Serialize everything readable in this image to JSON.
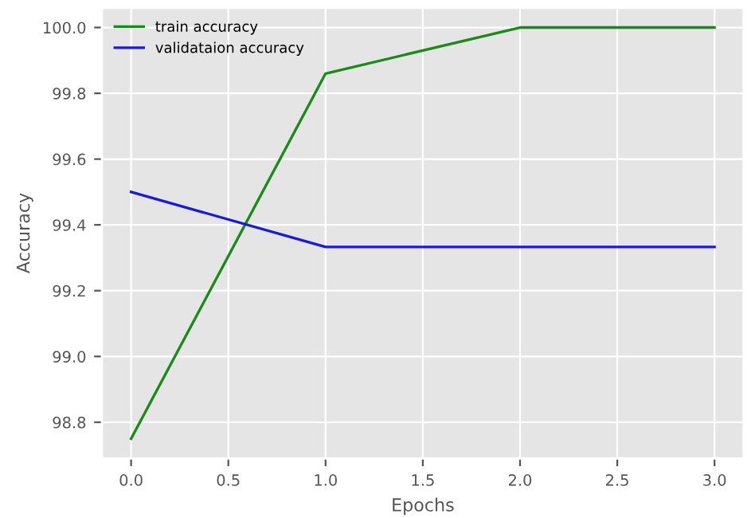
{
  "chart_data": {
    "type": "line",
    "xlabel": "Epochs",
    "ylabel": "Accuracy",
    "x": [
      0,
      1,
      2,
      3
    ],
    "series": [
      {
        "name": "train accuracy",
        "color": "#1a8a1a",
        "values": [
          98.75,
          99.86,
          100.0,
          100.0
        ]
      },
      {
        "name": "validataion accuracy",
        "color": "#1a1adc",
        "values": [
          99.5,
          99.333,
          99.333,
          99.333
        ]
      }
    ],
    "xlim": [
      -0.15,
      3.15
    ],
    "xticks": [
      {
        "value": 0,
        "label": "0.0"
      },
      0.5,
      {
        "value": 1,
        "label": "1.0"
      },
      1.5,
      {
        "value": 2,
        "label": "2.0"
      },
      2.5,
      {
        "value": 3,
        "label": "3.0"
      }
    ],
    "ylim": [
      98.69,
      100.06
    ],
    "yticks": [
      98.8,
      {
        "value": 99,
        "label": "99.0"
      },
      99.2,
      99.4,
      99.6,
      99.8,
      {
        "value": 100,
        "label": "100.0"
      }
    ],
    "grid": true,
    "legend": "top left",
    "marker": "none",
    "line_style": "solid"
  }
}
